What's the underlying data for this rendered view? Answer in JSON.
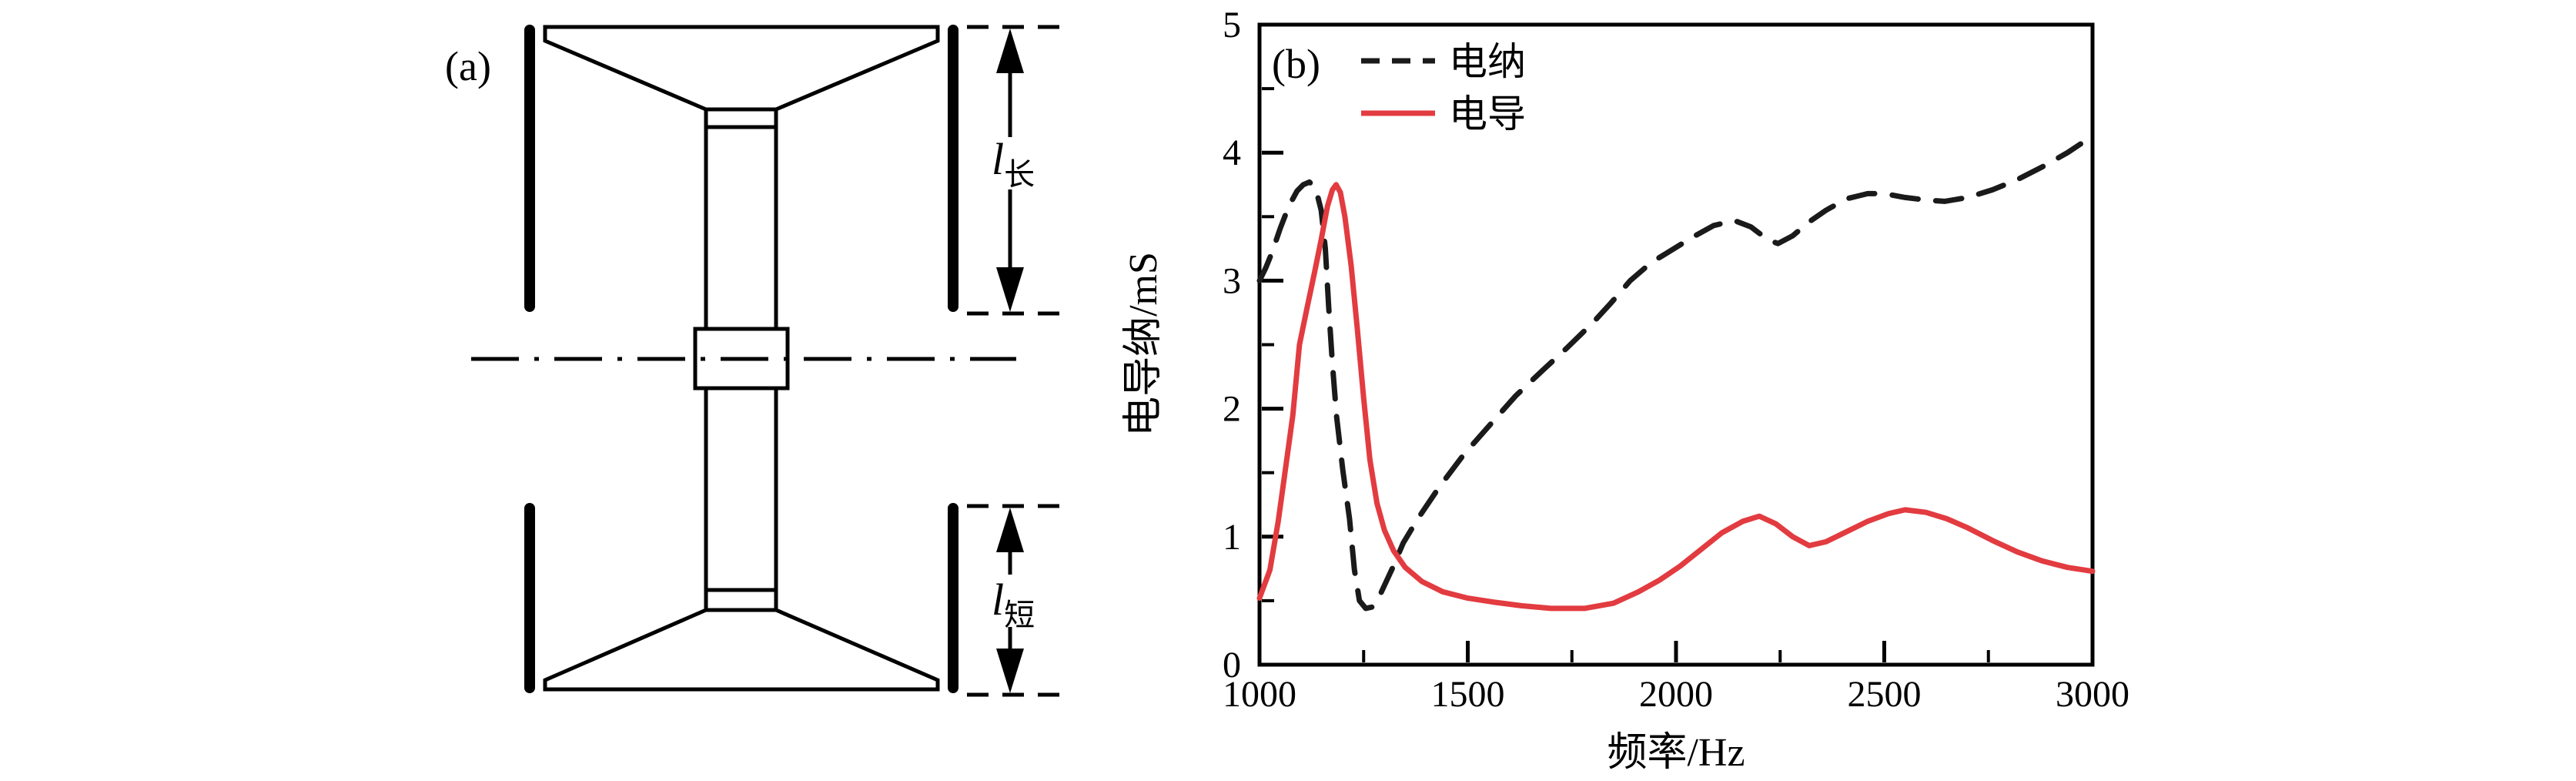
{
  "panel_a": {
    "label": "(a)",
    "dim_long": {
      "symbol": "l",
      "subscript": "长"
    },
    "dim_short": {
      "symbol": "l",
      "subscript": "短"
    }
  },
  "panel_b": {
    "label": "(b)"
  },
  "colors": {
    "susceptance": "#1a1a1a",
    "conductance": "#e23b40",
    "axis": "#000000"
  },
  "chart_data": {
    "type": "line",
    "title": "",
    "xlabel": "频率/Hz",
    "ylabel": "电导纳/mS",
    "xlim": [
      1000,
      3000
    ],
    "ylim": [
      0,
      5
    ],
    "x_ticks": [
      1000,
      1500,
      2000,
      2500,
      3000
    ],
    "x_minor_ticks": [
      1250,
      1750,
      2250,
      2750
    ],
    "y_ticks": [
      0,
      1,
      2,
      3,
      4,
      5
    ],
    "y_minor_ticks": [
      0.5,
      1.5,
      2.5,
      3.5,
      4.5
    ],
    "grid": false,
    "legend_position": "upper-left",
    "series": [
      {
        "name": "电纳",
        "style": "dashed",
        "color": "#1a1a1a",
        "points": [
          [
            1000,
            3.0
          ],
          [
            1015,
            3.1
          ],
          [
            1030,
            3.22
          ],
          [
            1050,
            3.41
          ],
          [
            1070,
            3.58
          ],
          [
            1090,
            3.7
          ],
          [
            1105,
            3.75
          ],
          [
            1120,
            3.77
          ],
          [
            1135,
            3.72
          ],
          [
            1148,
            3.55
          ],
          [
            1158,
            3.25
          ],
          [
            1166,
            2.8
          ],
          [
            1175,
            2.35
          ],
          [
            1185,
            1.94
          ],
          [
            1200,
            1.52
          ],
          [
            1216,
            1.14
          ],
          [
            1228,
            0.74
          ],
          [
            1240,
            0.5
          ],
          [
            1255,
            0.44
          ],
          [
            1270,
            0.45
          ],
          [
            1290,
            0.55
          ],
          [
            1320,
            0.76
          ],
          [
            1345,
            0.95
          ],
          [
            1380,
            1.14
          ],
          [
            1430,
            1.38
          ],
          [
            1490,
            1.64
          ],
          [
            1555,
            1.88
          ],
          [
            1615,
            2.1
          ],
          [
            1680,
            2.3
          ],
          [
            1740,
            2.48
          ],
          [
            1800,
            2.67
          ],
          [
            1845,
            2.83
          ],
          [
            1890,
            3.0
          ],
          [
            1940,
            3.14
          ],
          [
            1990,
            3.24
          ],
          [
            2040,
            3.34
          ],
          [
            2090,
            3.43
          ],
          [
            2140,
            3.47
          ],
          [
            2180,
            3.42
          ],
          [
            2220,
            3.32
          ],
          [
            2245,
            3.29
          ],
          [
            2280,
            3.35
          ],
          [
            2320,
            3.46
          ],
          [
            2360,
            3.55
          ],
          [
            2410,
            3.64
          ],
          [
            2460,
            3.68
          ],
          [
            2500,
            3.68
          ],
          [
            2550,
            3.65
          ],
          [
            2600,
            3.63
          ],
          [
            2645,
            3.62
          ],
          [
            2700,
            3.65
          ],
          [
            2760,
            3.71
          ],
          [
            2820,
            3.79
          ],
          [
            2880,
            3.89
          ],
          [
            2940,
            4.0
          ],
          [
            3000,
            4.13
          ]
        ]
      },
      {
        "name": "电导",
        "style": "solid",
        "color": "#e23b40",
        "points": [
          [
            1000,
            0.52
          ],
          [
            1025,
            0.74
          ],
          [
            1045,
            1.12
          ],
          [
            1062,
            1.52
          ],
          [
            1080,
            1.95
          ],
          [
            1096,
            2.5
          ],
          [
            1115,
            2.8
          ],
          [
            1133,
            3.08
          ],
          [
            1148,
            3.32
          ],
          [
            1163,
            3.58
          ],
          [
            1175,
            3.71
          ],
          [
            1184,
            3.75
          ],
          [
            1194,
            3.69
          ],
          [
            1205,
            3.5
          ],
          [
            1220,
            3.12
          ],
          [
            1235,
            2.62
          ],
          [
            1250,
            2.08
          ],
          [
            1265,
            1.6
          ],
          [
            1282,
            1.26
          ],
          [
            1300,
            1.05
          ],
          [
            1322,
            0.89
          ],
          [
            1350,
            0.76
          ],
          [
            1390,
            0.65
          ],
          [
            1440,
            0.57
          ],
          [
            1500,
            0.52
          ],
          [
            1560,
            0.49
          ],
          [
            1630,
            0.46
          ],
          [
            1700,
            0.44
          ],
          [
            1780,
            0.44
          ],
          [
            1850,
            0.48
          ],
          [
            1910,
            0.57
          ],
          [
            1960,
            0.66
          ],
          [
            2010,
            0.77
          ],
          [
            2060,
            0.9
          ],
          [
            2110,
            1.03
          ],
          [
            2160,
            1.12
          ],
          [
            2200,
            1.16
          ],
          [
            2240,
            1.1
          ],
          [
            2280,
            1.0
          ],
          [
            2320,
            0.93
          ],
          [
            2360,
            0.96
          ],
          [
            2410,
            1.04
          ],
          [
            2460,
            1.12
          ],
          [
            2510,
            1.18
          ],
          [
            2550,
            1.21
          ],
          [
            2600,
            1.19
          ],
          [
            2650,
            1.14
          ],
          [
            2700,
            1.07
          ],
          [
            2760,
            0.97
          ],
          [
            2820,
            0.88
          ],
          [
            2880,
            0.81
          ],
          [
            2940,
            0.76
          ],
          [
            3000,
            0.73
          ]
        ]
      }
    ]
  }
}
